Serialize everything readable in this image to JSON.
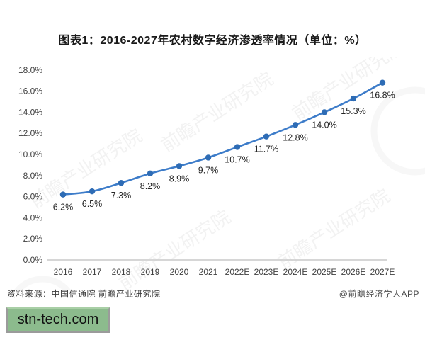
{
  "page": {
    "title": "图表1：2016-2027年农村数字经济渗透率情况（单位：%）"
  },
  "chart_data": {
    "type": "line",
    "title": "图表1：2016-2027年农村数字经济渗透率情况（单位：%）",
    "categories": [
      "2016",
      "2017",
      "2018",
      "2019",
      "2020",
      "2021",
      "2022E",
      "2023E",
      "2024E",
      "2025E",
      "2026E",
      "2027E"
    ],
    "values": [
      6.2,
      6.5,
      7.3,
      8.2,
      8.9,
      9.7,
      10.7,
      11.7,
      12.8,
      14.0,
      15.3,
      16.8
    ],
    "point_labels": [
      "6.2%",
      "6.5%",
      "7.3%",
      "8.2%",
      "8.9%",
      "9.7%",
      "10.7%",
      "11.7%",
      "12.8%",
      "14.0%",
      "15.3%",
      "16.8%"
    ],
    "ylabel": "",
    "xlabel": "",
    "ylim": [
      0,
      18
    ],
    "ytick_labels": [
      "0.0%",
      "2.0%",
      "4.0%",
      "6.0%",
      "8.0%",
      "10.0%",
      "12.0%",
      "14.0%",
      "16.0%",
      "18.0%"
    ],
    "grid": false,
    "legend": "none",
    "line_color": "#3d7cc9",
    "marker_color": "#2e6cb5",
    "label_color": "#262626",
    "tick_color": "#3f3f3f",
    "axis_color": "#c9c9c9"
  },
  "footer": {
    "source": "资料来源：中国信通院 前瞻产业研究院",
    "credit": "@前瞻经济学人APP"
  },
  "watermark": {
    "diagonal_text": "前瞻产业研究院",
    "badge_text": "stn-tech.com",
    "badge_color": "#8cbb8d"
  }
}
